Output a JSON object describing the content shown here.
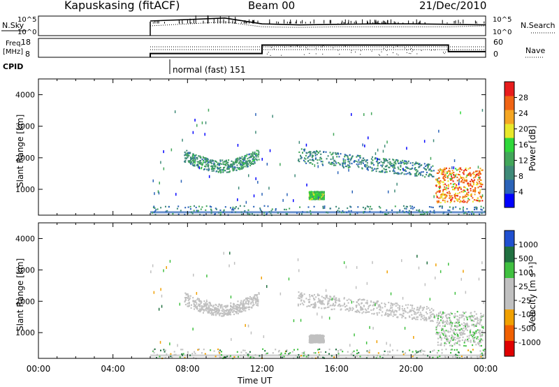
{
  "header": {
    "site": "Kapuskasing (fitACF)",
    "beam": "Beam 00",
    "date": "21/Dec/2010"
  },
  "strip_labels": {
    "nsky": "N.Sky",
    "nsearch": "N.Search",
    "freq_line1": "Freq.",
    "freq_line2": "[MHz]",
    "nave": "Nave",
    "cpid": "CPID",
    "cpid_value": "normal (fast) 151"
  },
  "noise_axis": {
    "top": "10^5",
    "bottom": "10^0"
  },
  "freq_axis": {
    "left_ticks": [
      "18",
      "8"
    ],
    "right_ticks": [
      "60",
      "0"
    ]
  },
  "chart_data": [
    {
      "type": "line",
      "name": "noise",
      "series": [
        {
          "name": "N.Sky",
          "x": [
            "06:00",
            "08:00",
            "10:00",
            "12:00",
            "14:00",
            "16:00",
            "18:00",
            "20:00",
            "22:00",
            "24:00"
          ],
          "y": [
            0.75,
            0.82,
            0.9,
            0.6,
            0.55,
            0.58,
            0.6,
            0.6,
            0.58,
            0.55
          ],
          "style": "solid"
        },
        {
          "name": "N.Search",
          "x": [
            "06:00",
            "08:00",
            "10:00",
            "12:00",
            "14:00",
            "16:00",
            "18:00",
            "20:00",
            "22:00",
            "24:00"
          ],
          "y": [
            0.5,
            0.6,
            0.7,
            0.45,
            0.42,
            0.45,
            0.45,
            0.45,
            0.45,
            0.5
          ],
          "style": "dotted"
        }
      ],
      "ylim": [
        0,
        1
      ]
    },
    {
      "type": "line",
      "name": "frequency",
      "series": [
        {
          "name": "Freq",
          "x": [
            "06:00",
            "06:00",
            "12:00",
            "12:00",
            "22:00",
            "22:00",
            "24:00"
          ],
          "y": [
            8,
            10,
            10,
            14.5,
            14.5,
            11,
            11
          ],
          "style": "solid"
        }
      ],
      "ylim": [
        8,
        18
      ]
    },
    {
      "type": "heatmap",
      "name": "power",
      "ylabel": "Slant Range [km]",
      "xlabel": "",
      "x_ticks": [
        "00:00",
        "04:00",
        "08:00",
        "12:00",
        "16:00",
        "20:00",
        "00:00"
      ],
      "y_ticks": [
        1000,
        2000,
        3000,
        4000
      ],
      "ylim": [
        180,
        4500
      ],
      "xlim_hours": [
        0,
        24
      ],
      "colorbar": {
        "label": "Power [dB]",
        "ticks": [
          "28",
          "24",
          "20",
          "16",
          "12",
          "8",
          "4"
        ],
        "range": [
          0,
          30
        ]
      },
      "regions": [
        {
          "t0": 7.8,
          "t1": 11.8,
          "r0": 1600,
          "r1": 2300,
          "value": 8
        },
        {
          "t0": 13.9,
          "t1": 21.2,
          "r0": 1500,
          "r1": 2400,
          "value": 7
        },
        {
          "t0": 21.3,
          "t1": 23.8,
          "r0": 600,
          "r1": 1700,
          "value": 20
        },
        {
          "t0": 14.5,
          "t1": 15.3,
          "r0": 700,
          "r1": 950,
          "value": 12
        },
        {
          "t0": 6,
          "t1": 24,
          "r0": 200,
          "r1": 500,
          "value": 6
        }
      ]
    },
    {
      "type": "heatmap",
      "name": "velocity",
      "ylabel": "Slant Range [km]",
      "xlabel": "Time UT",
      "x_ticks": [
        "00:00",
        "04:00",
        "08:00",
        "12:00",
        "16:00",
        "20:00",
        "00:00"
      ],
      "y_ticks": [
        1000,
        2000,
        3000,
        4000
      ],
      "ylim": [
        180,
        4500
      ],
      "xlim_hours": [
        0,
        24
      ],
      "colorbar": {
        "label": "Velocity [m s⁻¹]",
        "ticks": [
          "1000",
          "500",
          "100",
          "25",
          "-25",
          "-100",
          "-500",
          "-1000"
        ],
        "range": [
          -1000,
          1000
        ]
      },
      "regions": [
        {
          "t0": 7.8,
          "t1": 11.8,
          "r0": 1600,
          "r1": 2300,
          "value": 0
        },
        {
          "t0": 13.9,
          "t1": 21.2,
          "r0": 1500,
          "r1": 2400,
          "value": 0
        },
        {
          "t0": 21.3,
          "t1": 23.8,
          "r0": 600,
          "r1": 1700,
          "value": 60
        },
        {
          "t0": 14.5,
          "t1": 15.3,
          "r0": 700,
          "r1": 950,
          "value": 0
        },
        {
          "t0": 6,
          "t1": 24,
          "r0": 200,
          "r1": 500,
          "value": 50
        }
      ]
    }
  ],
  "colors": {
    "power": [
      "#0000ff",
      "#2b63b8",
      "#3f8a78",
      "#42a65a",
      "#2fd83a",
      "#e8e82a",
      "#f5a623",
      "#f06414",
      "#e81c1c"
    ],
    "velocity": [
      "#e00000",
      "#f06000",
      "#f0a000",
      "#c0c0c0",
      "#c0c0c0",
      "#40c040",
      "#207040",
      "#2050d0",
      "#0000c0"
    ]
  }
}
